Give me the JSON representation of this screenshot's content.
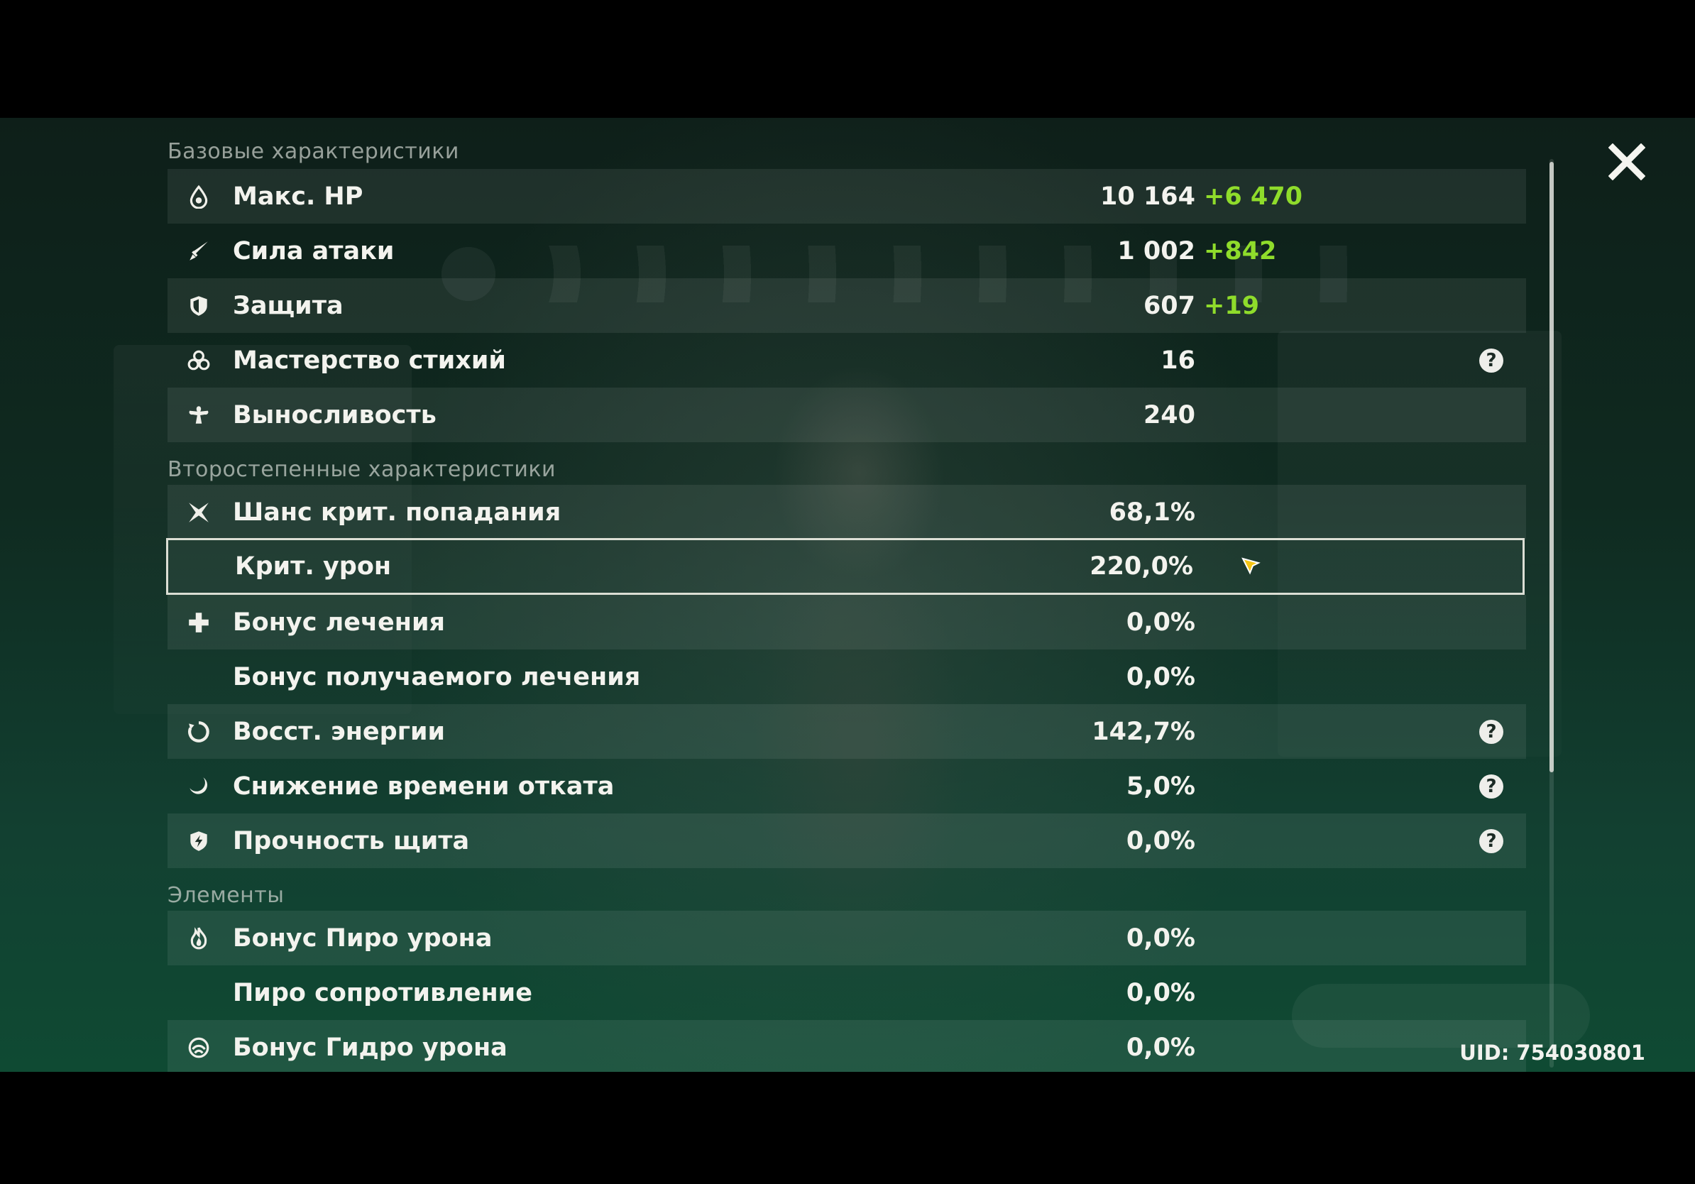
{
  "sections": {
    "base_title": "Базовые характеристики",
    "secondary_title": "Второстепенные характеристики",
    "elements_title": "Элементы"
  },
  "base": [
    {
      "icon": "hp-drop-icon",
      "label": "Макс. HP",
      "value": "10 164",
      "bonus": "+6 470"
    },
    {
      "icon": "sword-icon",
      "label": "Сила атаки",
      "value": "1 002",
      "bonus": "+842"
    },
    {
      "icon": "shield-icon",
      "label": "Защита",
      "value": "607",
      "bonus": "+19"
    },
    {
      "icon": "elemental-mastery-icon",
      "label": "Мастерство стихий",
      "value": "16",
      "help": "?"
    },
    {
      "icon": "stamina-icon",
      "label": "Выносливость",
      "value": "240"
    }
  ],
  "secondary": [
    {
      "icon": "crit-rate-icon",
      "label": "Шанс крит. попадания",
      "value": "68,1%"
    },
    {
      "icon": "",
      "label": "Крит. урон",
      "value": "220,0%"
    },
    {
      "icon": "healing-cross-icon",
      "label": "Бонус лечения",
      "value": "0,0%"
    },
    {
      "icon": "",
      "label": "Бонус получаемого лечения",
      "value": "0,0%"
    },
    {
      "icon": "energy-recharge-icon",
      "label": "Восст. энергии",
      "value": "142,7%",
      "help": "?"
    },
    {
      "icon": "cooldown-icon",
      "label": "Снижение времени отката",
      "value": "5,0%",
      "help": "?"
    },
    {
      "icon": "shield-strength-icon",
      "label": "Прочность щита",
      "value": "0,0%",
      "help": "?"
    }
  ],
  "elements": [
    {
      "icon": "pyro-icon",
      "label": "Бонус Пиро урона",
      "value": "0,0%"
    },
    {
      "icon": "",
      "label": "Пиро сопротивление",
      "value": "0,0%"
    },
    {
      "icon": "hydro-icon",
      "label": "Бонус Гидро урона",
      "value": "0,0%"
    }
  ],
  "uid": "UID: 754030801",
  "colors": {
    "bonus": "#8fdc2b",
    "selected_border": "#f0f0e6"
  }
}
